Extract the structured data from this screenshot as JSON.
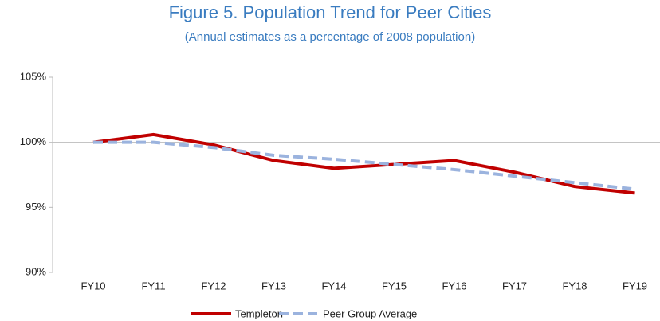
{
  "chart_data": {
    "type": "line",
    "title": "Figure 5.  Population Trend for Peer Cities",
    "subtitle": "(Annual estimates as a percentage of 2008 population)",
    "categories": [
      "FY10",
      "FY11",
      "FY12",
      "FY13",
      "FY14",
      "FY15",
      "FY16",
      "FY17",
      "FY18",
      "FY19"
    ],
    "series": [
      {
        "name": "Templeton",
        "color": "#c00000",
        "dashed": false,
        "values": [
          100,
          100.6,
          99.8,
          98.6,
          98.0,
          98.3,
          98.6,
          97.7,
          96.6,
          96.1
        ]
      },
      {
        "name": "Peer Group Average",
        "color": "#9bb3de",
        "dashed": true,
        "values": [
          100,
          100,
          99.6,
          99.0,
          98.7,
          98.3,
          97.9,
          97.4,
          96.9,
          96.4
        ]
      }
    ],
    "ylim": [
      90,
      105
    ],
    "yticks": [
      {
        "value": 90,
        "label": "90%"
      },
      {
        "value": 95,
        "label": "95%"
      },
      {
        "value": 100,
        "label": "100%"
      },
      {
        "value": 105,
        "label": "105%"
      }
    ],
    "x_axis_crosses_at": 100,
    "legend": "bottom"
  }
}
